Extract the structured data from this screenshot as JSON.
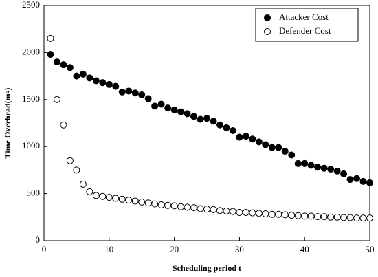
{
  "chart_data": {
    "type": "scatter",
    "xlabel": "Scheduling period t",
    "ylabel": "Time Overhead(ms)",
    "x": [
      1,
      2,
      3,
      4,
      5,
      6,
      7,
      8,
      9,
      10,
      11,
      12,
      13,
      14,
      15,
      16,
      17,
      18,
      19,
      20,
      21,
      22,
      23,
      24,
      25,
      26,
      27,
      28,
      29,
      30,
      31,
      32,
      33,
      34,
      35,
      36,
      37,
      38,
      39,
      40,
      41,
      42,
      43,
      44,
      45,
      46,
      47,
      48,
      49,
      50
    ],
    "series": [
      {
        "name": "Attacker Cost",
        "color": "#000000",
        "values": [
          1980,
          1900,
          1870,
          1840,
          1750,
          1770,
          1730,
          1700,
          1680,
          1660,
          1640,
          1580,
          1590,
          1570,
          1550,
          1510,
          1430,
          1450,
          1410,
          1390,
          1370,
          1350,
          1320,
          1290,
          1300,
          1270,
          1230,
          1200,
          1170,
          1100,
          1110,
          1080,
          1050,
          1020,
          990,
          990,
          950,
          910,
          820,
          820,
          800,
          780,
          770,
          760,
          740,
          710,
          650,
          660,
          630,
          615
        ]
      },
      {
        "name": "Defender Cost",
        "color": "#ffffff",
        "values": [
          2150,
          1500,
          1230,
          850,
          750,
          600,
          520,
          480,
          470,
          460,
          450,
          440,
          430,
          420,
          410,
          400,
          390,
          380,
          375,
          370,
          360,
          355,
          350,
          340,
          335,
          330,
          320,
          315,
          310,
          300,
          300,
          295,
          290,
          285,
          280,
          280,
          275,
          270,
          265,
          260,
          260,
          255,
          255,
          250,
          250,
          245,
          245,
          240,
          240,
          240
        ]
      }
    ],
    "xlim": [
      0,
      50
    ],
    "xticks": [
      0,
      10,
      20,
      30,
      40,
      50
    ],
    "ylim": [
      0,
      2500
    ],
    "yticks": [
      0,
      500,
      1000,
      1500,
      2000,
      2500
    ],
    "legend": "upper right"
  }
}
